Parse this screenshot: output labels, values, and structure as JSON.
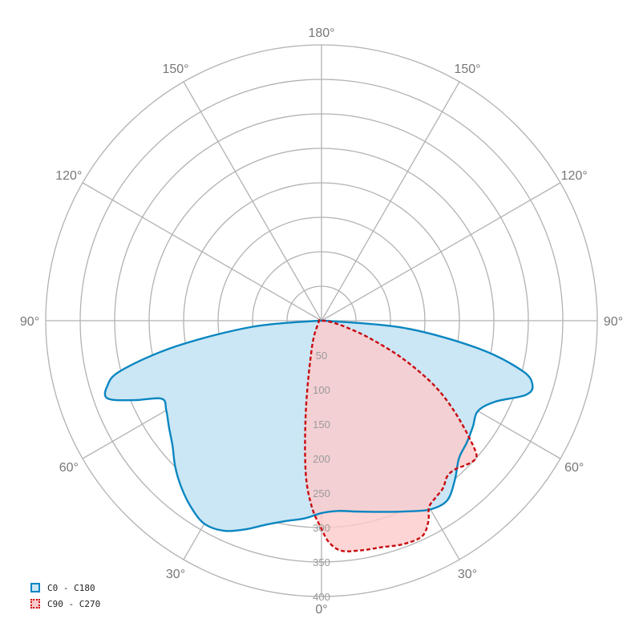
{
  "chart_data": {
    "type": "polar",
    "title": "",
    "radial_axis": {
      "ticks": [
        50,
        100,
        150,
        200,
        250,
        300,
        350,
        400
      ],
      "max": 400
    },
    "angular_axis": {
      "labels": [
        {
          "angle": 0,
          "side": "center",
          "text": "0°"
        },
        {
          "angle": 30,
          "side": "left",
          "text": "30°"
        },
        {
          "angle": 30,
          "side": "right",
          "text": "30°"
        },
        {
          "angle": 60,
          "side": "left",
          "text": "60°"
        },
        {
          "angle": 60,
          "side": "right",
          "text": "60°"
        },
        {
          "angle": 90,
          "side": "left",
          "text": "90°"
        },
        {
          "angle": 90,
          "side": "right",
          "text": "90°"
        },
        {
          "angle": 120,
          "side": "left",
          "text": "120°"
        },
        {
          "angle": 120,
          "side": "right",
          "text": "120°"
        },
        {
          "angle": 150,
          "side": "left",
          "text": "150°"
        },
        {
          "angle": 150,
          "side": "right",
          "text": "150°"
        },
        {
          "angle": 180,
          "side": "center",
          "text": "180°"
        }
      ]
    },
    "grid": true,
    "legend_position": "bottom-left",
    "series": [
      {
        "name": "C0 - C180",
        "color": "#0a86c1",
        "fill": "#cbe6f4",
        "line_style": "solid",
        "points": [
          [
            -90,
            3
          ],
          [
            -85,
            100
          ],
          [
            -80,
            215
          ],
          [
            -76,
            300
          ],
          [
            -73,
            325
          ],
          [
            -70,
            330
          ],
          [
            -67,
            295
          ],
          [
            -64,
            258
          ],
          [
            -60,
            260
          ],
          [
            -55,
            270
          ],
          [
            -50,
            282
          ],
          [
            -45,
            300
          ],
          [
            -40,
            316
          ],
          [
            -35,
            330
          ],
          [
            -30,
            340
          ],
          [
            -25,
            336
          ],
          [
            -20,
            322
          ],
          [
            -15,
            306
          ],
          [
            -10,
            295
          ],
          [
            -5,
            288
          ],
          [
            0,
            279
          ],
          [
            5,
            277
          ],
          [
            10,
            281
          ],
          [
            15,
            287
          ],
          [
            20,
            295
          ],
          [
            25,
            305
          ],
          [
            30,
            316
          ],
          [
            35,
            318
          ],
          [
            40,
            301
          ],
          [
            45,
            282
          ],
          [
            50,
            275
          ],
          [
            55,
            268
          ],
          [
            60,
            262
          ],
          [
            65,
            278
          ],
          [
            70,
            315
          ],
          [
            73,
            320
          ],
          [
            76,
            300
          ],
          [
            80,
            230
          ],
          [
            85,
            120
          ],
          [
            90,
            5
          ]
        ]
      },
      {
        "name": "C90 - C270",
        "color": "#c80a10",
        "fill": "#fccaca",
        "line_style": "dashed",
        "points": [
          [
            -90,
            3
          ],
          [
            -60,
            5
          ],
          [
            -20,
            40
          ],
          [
            -10,
            130
          ],
          [
            -6,
            220
          ],
          [
            -3,
            270
          ],
          [
            0,
            302
          ],
          [
            2,
            322
          ],
          [
            5,
            335
          ],
          [
            10,
            338
          ],
          [
            15,
            340
          ],
          [
            20,
            345
          ],
          [
            25,
            345
          ],
          [
            28,
            330
          ],
          [
            30,
            312
          ],
          [
            33,
            305
          ],
          [
            36,
            300
          ],
          [
            39,
            290
          ],
          [
            42,
            290
          ],
          [
            45,
            296
          ],
          [
            48,
            300
          ],
          [
            50,
            290
          ],
          [
            55,
            240
          ],
          [
            60,
            190
          ],
          [
            65,
            130
          ],
          [
            70,
            75
          ],
          [
            75,
            38
          ],
          [
            80,
            18
          ],
          [
            85,
            8
          ],
          [
            90,
            3
          ]
        ]
      }
    ]
  }
}
